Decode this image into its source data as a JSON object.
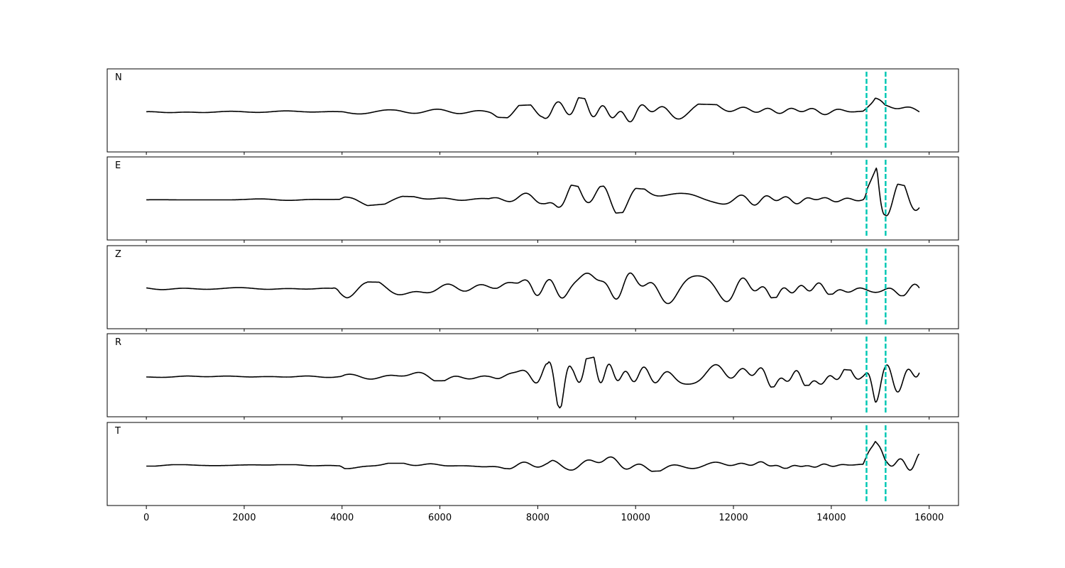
{
  "chart_data": {
    "type": "line",
    "xlim": [
      -800,
      16600
    ],
    "xticks": [
      0,
      2000,
      4000,
      6000,
      8000,
      10000,
      12000,
      14000,
      16000
    ],
    "x_range": [
      0,
      15800
    ],
    "ylim": [
      -1,
      1
    ],
    "grid": false,
    "picks": [
      14720,
      15110
    ],
    "pick_color": "#00c8b4",
    "trace_color": "#000000",
    "panels": [
      {
        "label": "N",
        "envelope": [
          [
            0,
            0.02
          ],
          [
            3950,
            0.03
          ],
          [
            4050,
            0.12
          ],
          [
            5000,
            0.1
          ],
          [
            5200,
            0.12
          ],
          [
            7000,
            0.06
          ],
          [
            7200,
            0.15
          ],
          [
            8100,
            0.2
          ],
          [
            8300,
            0.45
          ],
          [
            8500,
            0.45
          ],
          [
            9000,
            0.35
          ],
          [
            10000,
            0.3
          ],
          [
            11000,
            0.22
          ],
          [
            12000,
            0.18
          ],
          [
            13000,
            0.12
          ],
          [
            14000,
            0.1
          ],
          [
            14650,
            0.06
          ],
          [
            14900,
            0.95
          ],
          [
            15100,
            0.4
          ],
          [
            15800,
            0.22
          ]
        ]
      },
      {
        "label": "E",
        "envelope": [
          [
            0,
            0.02
          ],
          [
            3950,
            0.03
          ],
          [
            4050,
            0.15
          ],
          [
            4300,
            0.18
          ],
          [
            5000,
            0.1
          ],
          [
            7000,
            0.05
          ],
          [
            7200,
            0.18
          ],
          [
            8100,
            0.22
          ],
          [
            8400,
            0.48
          ],
          [
            8600,
            0.42
          ],
          [
            9000,
            0.32
          ],
          [
            9400,
            0.38
          ],
          [
            10100,
            0.3
          ],
          [
            11000,
            0.22
          ],
          [
            12300,
            0.25
          ],
          [
            13000,
            0.15
          ],
          [
            14000,
            0.1
          ],
          [
            14650,
            0.05
          ],
          [
            14950,
            0.95
          ],
          [
            15100,
            0.5
          ],
          [
            15800,
            0.3
          ]
        ]
      },
      {
        "label": "Z",
        "envelope": [
          [
            0,
            0.03
          ],
          [
            3800,
            0.03
          ],
          [
            3950,
            0.4
          ],
          [
            4100,
            0.4
          ],
          [
            4500,
            0.18
          ],
          [
            6000,
            0.15
          ],
          [
            7100,
            0.15
          ],
          [
            7200,
            0.45
          ],
          [
            7600,
            0.4
          ],
          [
            7900,
            0.8
          ],
          [
            8200,
            0.55
          ],
          [
            9000,
            0.45
          ],
          [
            10000,
            0.42
          ],
          [
            11000,
            0.4
          ],
          [
            12000,
            0.35
          ],
          [
            13000,
            0.22
          ],
          [
            14000,
            0.15
          ],
          [
            14700,
            0.12
          ],
          [
            15200,
            0.2
          ],
          [
            15800,
            0.18
          ]
        ]
      },
      {
        "label": "R",
        "envelope": [
          [
            0,
            0.02
          ],
          [
            3950,
            0.03
          ],
          [
            4050,
            0.1
          ],
          [
            5200,
            0.12
          ],
          [
            7000,
            0.1
          ],
          [
            7200,
            0.25
          ],
          [
            8200,
            0.35
          ],
          [
            8450,
            0.85
          ],
          [
            8700,
            0.4
          ],
          [
            9400,
            0.6
          ],
          [
            10200,
            0.4
          ],
          [
            11000,
            0.35
          ],
          [
            12300,
            0.35
          ],
          [
            13000,
            0.25
          ],
          [
            14000,
            0.22
          ],
          [
            14650,
            0.15
          ],
          [
            14900,
            0.75
          ],
          [
            15100,
            0.45
          ],
          [
            15800,
            0.35
          ]
        ]
      },
      {
        "label": "T",
        "envelope": [
          [
            0,
            0.02
          ],
          [
            3950,
            0.02
          ],
          [
            4050,
            0.1
          ],
          [
            4500,
            0.06
          ],
          [
            7000,
            0.05
          ],
          [
            7500,
            0.1
          ],
          [
            8200,
            0.18
          ],
          [
            8300,
            0.28
          ],
          [
            8600,
            0.22
          ],
          [
            9400,
            0.28
          ],
          [
            10000,
            0.18
          ],
          [
            11000,
            0.12
          ],
          [
            12600,
            0.12
          ],
          [
            13000,
            0.08
          ],
          [
            14000,
            0.05
          ],
          [
            14650,
            0.04
          ],
          [
            14900,
            0.95
          ],
          [
            15100,
            0.3
          ],
          [
            15800,
            0.3
          ]
        ]
      }
    ]
  }
}
